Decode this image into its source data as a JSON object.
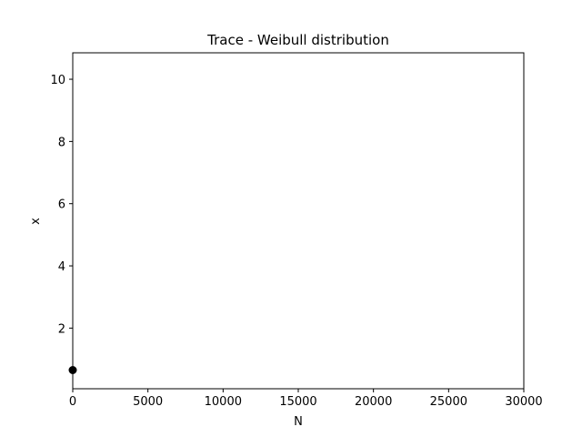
{
  "chart_data": {
    "type": "scatter",
    "title": "Trace - Weibull distribution",
    "xlabel": "N",
    "ylabel": "x",
    "xlim": [
      0,
      30000
    ],
    "ylim": [
      0.05,
      10.85
    ],
    "xticks": [
      0,
      5000,
      10000,
      15000,
      20000,
      25000,
      30000
    ],
    "yticks": [
      2,
      4,
      6,
      8,
      10
    ],
    "grid": false,
    "series": [
      {
        "color": "#000000",
        "marker": "circle",
        "points": [
          {
            "x": 0,
            "y": 0.65
          }
        ]
      }
    ]
  }
}
